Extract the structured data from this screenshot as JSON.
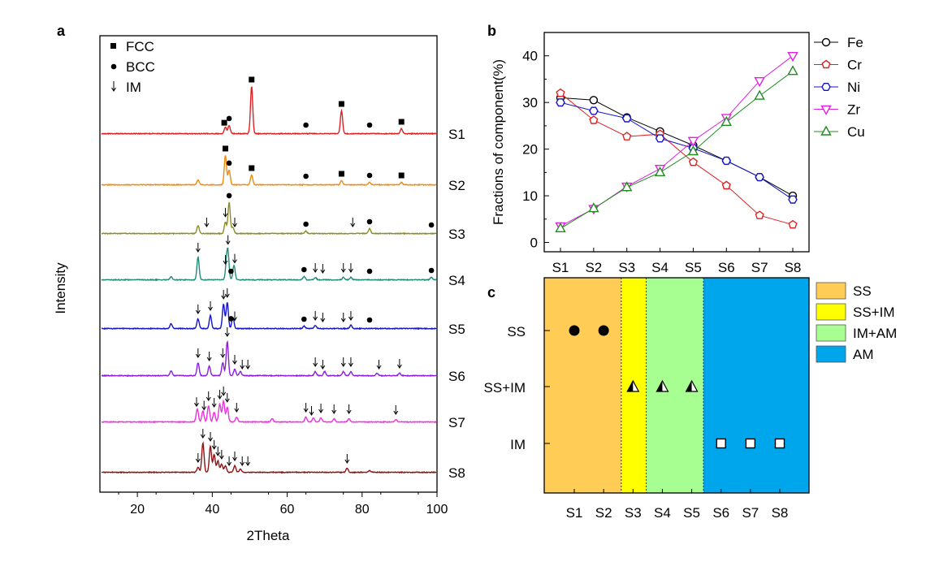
{
  "chart_data": [
    {
      "panel": "a",
      "type": "line",
      "xlabel": "2Theta",
      "ylabel": "Intensity",
      "xlim": [
        10,
        100
      ],
      "x_ticks": [
        20,
        40,
        60,
        80,
        100
      ],
      "legend": [
        {
          "marker": "square",
          "label": "FCC"
        },
        {
          "marker": "circle",
          "label": "BCC"
        },
        {
          "marker": "arrow",
          "label": "IM"
        }
      ],
      "series": [
        {
          "name": "S1",
          "color": "#e02020",
          "peaks": [
            {
              "x": 43.5,
              "h": 8
            },
            {
              "x": 44.5,
              "h": 10
            },
            {
              "x": 50.5,
              "h": 58
            },
            {
              "x": 74.5,
              "h": 28
            },
            {
              "x": 90.5,
              "h": 6
            }
          ],
          "fcc": [
            43.2,
            50.5,
            74.5,
            90.5
          ],
          "bcc": [
            44.5,
            65,
            82
          ],
          "im": []
        },
        {
          "name": "S2",
          "color": "#f08a10",
          "peaks": [
            {
              "x": 36.2,
              "h": 6
            },
            {
              "x": 43.5,
              "h": 36
            },
            {
              "x": 44.5,
              "h": 18
            },
            {
              "x": 50.5,
              "h": 12
            },
            {
              "x": 74.5,
              "h": 5
            },
            {
              "x": 82,
              "h": 3
            },
            {
              "x": 90.5,
              "h": 3
            }
          ],
          "fcc": [
            43.5,
            50.5,
            74.5,
            90.5
          ],
          "bcc": [
            44.5,
            65,
            82
          ],
          "im": []
        },
        {
          "name": "S3",
          "color": "#8c8c28",
          "peaks": [
            {
              "x": 36.2,
              "h": 10
            },
            {
              "x": 43.5,
              "h": 14
            },
            {
              "x": 44.5,
              "h": 38
            },
            {
              "x": 45.5,
              "h": 8
            },
            {
              "x": 65,
              "h": 3
            },
            {
              "x": 82,
              "h": 6
            }
          ],
          "fcc": [],
          "bcc": [
            44.5,
            65,
            82,
            98.5
          ],
          "im": [
            38.5,
            43.5,
            46,
            77.5
          ]
        },
        {
          "name": "S4",
          "color": "#1e8c78",
          "peaks": [
            {
              "x": 29,
              "h": 4
            },
            {
              "x": 36.2,
              "h": 28
            },
            {
              "x": 43.8,
              "h": 18
            },
            {
              "x": 44.2,
              "h": 30
            },
            {
              "x": 45.8,
              "h": 18
            },
            {
              "x": 64.5,
              "h": 4
            },
            {
              "x": 67.5,
              "h": 3
            },
            {
              "x": 75,
              "h": 3
            },
            {
              "x": 77,
              "h": 3
            },
            {
              "x": 98.5,
              "h": 3
            }
          ],
          "fcc": [],
          "bcc": [
            45,
            64.5,
            82,
            98.5
          ],
          "im": [
            36.2,
            43.5,
            44.2,
            46,
            67.5,
            69.5,
            75,
            77
          ]
        },
        {
          "name": "S5",
          "color": "#1414c8",
          "peaks": [
            {
              "x": 29,
              "h": 6
            },
            {
              "x": 36.2,
              "h": 12
            },
            {
              "x": 39.5,
              "h": 16
            },
            {
              "x": 43,
              "h": 30
            },
            {
              "x": 44,
              "h": 32
            },
            {
              "x": 45.5,
              "h": 14
            },
            {
              "x": 64.5,
              "h": 3
            },
            {
              "x": 67.5,
              "h": 4
            },
            {
              "x": 77,
              "h": 4
            }
          ],
          "fcc": [],
          "bcc": [
            45,
            64.5,
            82
          ],
          "im": [
            36.2,
            39.5,
            43,
            44,
            46,
            67.5,
            69.5,
            75,
            77
          ]
        },
        {
          "name": "S6",
          "color": "#8c1ee0",
          "peaks": [
            {
              "x": 29,
              "h": 6
            },
            {
              "x": 36.2,
              "h": 16
            },
            {
              "x": 39.2,
              "h": 12
            },
            {
              "x": 42.8,
              "h": 16
            },
            {
              "x": 44,
              "h": 42
            },
            {
              "x": 46,
              "h": 8
            },
            {
              "x": 47.5,
              "h": 5
            },
            {
              "x": 67.5,
              "h": 5
            },
            {
              "x": 70,
              "h": 5
            },
            {
              "x": 75,
              "h": 5
            },
            {
              "x": 77,
              "h": 5
            },
            {
              "x": 84,
              "h": 3
            },
            {
              "x": 90,
              "h": 3
            }
          ],
          "fcc": [],
          "bcc": [],
          "im": [
            36.2,
            39.2,
            42.8,
            44,
            46,
            48,
            49.5,
            67.5,
            69.5,
            75,
            77,
            84.5,
            90
          ]
        },
        {
          "name": "S7",
          "color": "#f030e0",
          "peaks": [
            {
              "x": 36,
              "h": 16
            },
            {
              "x": 37.5,
              "h": 14
            },
            {
              "x": 39,
              "h": 20
            },
            {
              "x": 40.5,
              "h": 12
            },
            {
              "x": 42,
              "h": 22
            },
            {
              "x": 43,
              "h": 26
            },
            {
              "x": 44,
              "h": 18
            },
            {
              "x": 46.5,
              "h": 6
            },
            {
              "x": 56,
              "h": 4
            },
            {
              "x": 65,
              "h": 6
            },
            {
              "x": 67,
              "h": 5
            },
            {
              "x": 69,
              "h": 5
            },
            {
              "x": 72.5,
              "h": 4
            },
            {
              "x": 76.5,
              "h": 4
            },
            {
              "x": 89,
              "h": 3
            }
          ],
          "fcc": [],
          "bcc": [],
          "im": [
            35.8,
            37.8,
            39,
            40.5,
            42,
            43,
            44,
            46.5,
            65,
            66.5,
            69,
            72.5,
            76.5,
            89
          ]
        },
        {
          "name": "S8",
          "color": "#8c1414",
          "peaks": [
            {
              "x": 36.2,
              "h": 6
            },
            {
              "x": 37.5,
              "h": 36
            },
            {
              "x": 39.5,
              "h": 32
            },
            {
              "x": 40.5,
              "h": 22
            },
            {
              "x": 41.5,
              "h": 14
            },
            {
              "x": 42.5,
              "h": 10
            },
            {
              "x": 43.5,
              "h": 8
            },
            {
              "x": 46,
              "h": 8
            },
            {
              "x": 47.5,
              "h": 4
            },
            {
              "x": 76,
              "h": 5
            },
            {
              "x": 82,
              "h": 2
            }
          ],
          "fcc": [],
          "bcc": [],
          "im": [
            36.2,
            37.5,
            39.5,
            40.5,
            41.5,
            42.5,
            44.5,
            46,
            48,
            49.5,
            76
          ]
        }
      ]
    },
    {
      "panel": "b",
      "type": "line",
      "ylabel": "Fractions of component(%)",
      "categories": [
        "S1",
        "S2",
        "S3",
        "S4",
        "S5",
        "S6",
        "S7",
        "S8"
      ],
      "ylim": [
        -2,
        45
      ],
      "y_ticks": [
        0,
        10,
        20,
        30,
        40
      ],
      "legend_position": "right",
      "series": [
        {
          "name": "Fe",
          "color": "#000000",
          "marker": "circle",
          "values": [
            31.0,
            30.5,
            26.8,
            23.8,
            20.8,
            17.5,
            14.0,
            10.0
          ]
        },
        {
          "name": "Cr",
          "color": "#e02020",
          "marker": "pentagon",
          "values": [
            32.0,
            26.2,
            22.7,
            23.2,
            17.2,
            12.2,
            5.8,
            3.8
          ]
        },
        {
          "name": "Ni",
          "color": "#1414c8",
          "marker": "hexagon",
          "values": [
            30.0,
            28.2,
            26.6,
            22.3,
            20.2,
            17.5,
            14.0,
            9.2
          ]
        },
        {
          "name": "Zr",
          "color": "#e020e0",
          "marker": "triangle-down",
          "values": [
            3.5,
            7.2,
            12.0,
            15.8,
            21.8,
            26.7,
            34.6,
            40.0
          ]
        },
        {
          "name": "Cu",
          "color": "#1e8c1e",
          "marker": "triangle-up",
          "values": [
            3.0,
            7.3,
            11.8,
            15.0,
            19.5,
            25.8,
            31.4,
            36.7
          ]
        }
      ]
    },
    {
      "panel": "c",
      "type": "scatter",
      "categories": [
        "S1",
        "S2",
        "S3",
        "S4",
        "S5",
        "S6",
        "S7",
        "S8"
      ],
      "y_categories": [
        "SS",
        "SS+IM",
        "IM"
      ],
      "legend": [
        {
          "label": "SS",
          "color": "#ffcc55"
        },
        {
          "label": "SS+IM",
          "color": "#ffff00"
        },
        {
          "label": "IM+AM",
          "color": "#a6ff90"
        },
        {
          "label": "AM",
          "color": "#00a6ec"
        }
      ],
      "regions": [
        {
          "label": "SS",
          "from": 0.5,
          "to": 2.6
        },
        {
          "label": "SS+IM",
          "from": 2.6,
          "to": 3.45
        },
        {
          "label": "IM+AM",
          "from": 3.45,
          "to": 5.4
        },
        {
          "label": "AM",
          "from": 5.4,
          "to": 8.5
        }
      ],
      "points": [
        {
          "sample": "S1",
          "phase": "SS",
          "marker": "filled-circle"
        },
        {
          "sample": "S2",
          "phase": "SS",
          "marker": "filled-circle"
        },
        {
          "sample": "S3",
          "phase": "SS+IM",
          "marker": "half-triangle"
        },
        {
          "sample": "S4",
          "phase": "SS+IM",
          "marker": "half-triangle"
        },
        {
          "sample": "S5",
          "phase": "SS+IM",
          "marker": "half-triangle"
        },
        {
          "sample": "S6",
          "phase": "IM",
          "marker": "open-square"
        },
        {
          "sample": "S7",
          "phase": "IM",
          "marker": "open-square"
        },
        {
          "sample": "S8",
          "phase": "IM",
          "marker": "open-square"
        }
      ]
    }
  ],
  "panel_labels": {
    "a": "a",
    "b": "b",
    "c": "c"
  }
}
